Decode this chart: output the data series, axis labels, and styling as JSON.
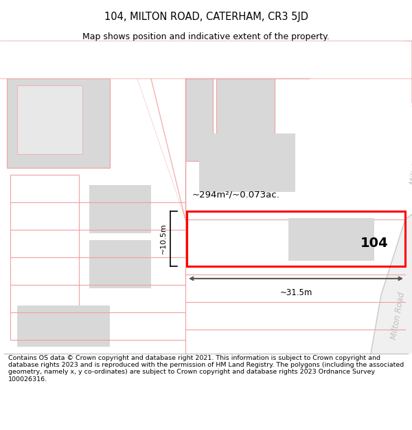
{
  "title": "104, MILTON ROAD, CATERHAM, CR3 5JD",
  "subtitle": "Map shows position and indicative extent of the property.",
  "footer": "Contains OS data © Crown copyright and database right 2021. This information is subject to Crown copyright and database rights 2023 and is reproduced with the permission of HM Land Registry. The polygons (including the associated geometry, namely x, y co-ordinates) are subject to Crown copyright and database rights 2023 Ordnance Survey 100026316.",
  "bg_color": "#ffffff",
  "map_line_color": "#f0a0a0",
  "road_gray_color": "#c8c8c8",
  "gray_block_color": "#d8d8d8",
  "road_text_color": "#c0c0c0",
  "area_label": "~294m²/~0.073ac.",
  "width_label": "~31.5m",
  "height_label": "~10.5m",
  "number_label": "104",
  "road_label": "Milton Road",
  "title_fontsize": 10.5,
  "subtitle_fontsize": 9,
  "footer_fontsize": 6.8,
  "arrow_color": "#555555"
}
